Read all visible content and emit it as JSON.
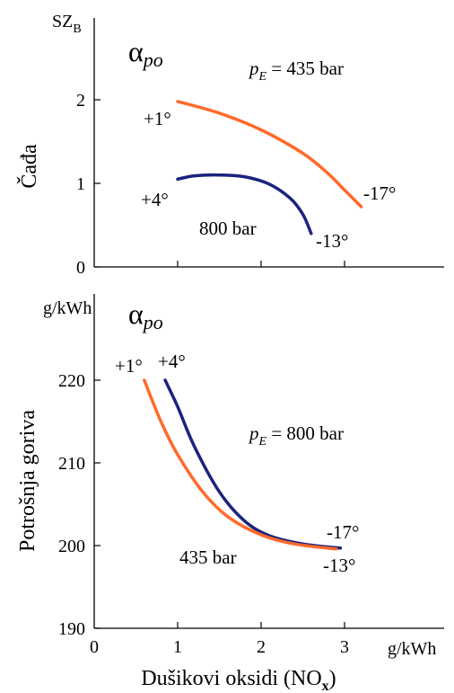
{
  "chart_data": [
    {
      "type": "line",
      "y_unit": "SZ",
      "y_unit_sub": "B",
      "ylabel": "Čađa",
      "panel_symbol": "α",
      "panel_symbol_sub": "po",
      "ylim": [
        0,
        2.7
      ],
      "xlim": [
        0,
        3.5
      ],
      "yticks": [
        0,
        1,
        2
      ],
      "xticks": [
        1,
        2,
        3
      ],
      "grid": false,
      "series": [
        {
          "name": "435 bar",
          "label_prefix": "p",
          "label_sub": "E",
          "label_rest": " = 435 bar",
          "color": "#ff6a2b",
          "start_label": "+1°",
          "end_label": "-17°",
          "points": [
            [
              1.0,
              1.98
            ],
            [
              1.5,
              1.84
            ],
            [
              2.0,
              1.64
            ],
            [
              2.5,
              1.36
            ],
            [
              2.8,
              1.12
            ],
            [
              3.0,
              0.92
            ],
            [
              3.2,
              0.72
            ]
          ]
        },
        {
          "name": "800 bar",
          "label_text": "800 bar",
          "color": "#1a237e",
          "start_label": "+4°",
          "end_label": "-13°",
          "points": [
            [
              1.0,
              1.05
            ],
            [
              1.2,
              1.09
            ],
            [
              1.5,
              1.1
            ],
            [
              1.8,
              1.08
            ],
            [
              2.1,
              0.99
            ],
            [
              2.35,
              0.82
            ],
            [
              2.5,
              0.63
            ],
            [
              2.6,
              0.4
            ]
          ]
        }
      ]
    },
    {
      "type": "line",
      "y_unit": "g/kWh",
      "ylabel": "Potrošnja goriva",
      "panel_symbol": "α",
      "panel_symbol_sub": "po",
      "xlabel": "Dušikovi oksidi (NO",
      "xlabel_sub": "x",
      "xlabel_end": ")",
      "x_unit": "g/kWh",
      "ylim": [
        190,
        225
      ],
      "xlim": [
        0,
        3.5
      ],
      "yticks": [
        190,
        200,
        210,
        220
      ],
      "xticks": [
        0,
        1,
        2,
        3
      ],
      "grid": false,
      "series": [
        {
          "name": "800 bar",
          "label_prefix": "p",
          "label_sub": "E",
          "label_rest": " = 800 bar",
          "color": "#1a237e",
          "start_label": "+4°",
          "end_label": "-17°",
          "points": [
            [
              0.85,
              220.0
            ],
            [
              1.0,
              216.8
            ],
            [
              1.2,
              212.0
            ],
            [
              1.5,
              206.5
            ],
            [
              1.8,
              203.0
            ],
            [
              2.1,
              201.2
            ],
            [
              2.5,
              200.2
            ],
            [
              2.95,
              199.7
            ]
          ]
        },
        {
          "name": "435 bar",
          "label_text": "435 bar",
          "color": "#ff6a2b",
          "start_label": "+1°",
          "end_label": "-13°",
          "points": [
            [
              0.6,
              220.0
            ],
            [
              0.8,
              215.0
            ],
            [
              1.0,
              211.0
            ],
            [
              1.3,
              206.5
            ],
            [
              1.6,
              203.5
            ],
            [
              2.0,
              201.3
            ],
            [
              2.4,
              200.2
            ],
            [
              2.9,
              199.6
            ]
          ]
        }
      ]
    }
  ]
}
